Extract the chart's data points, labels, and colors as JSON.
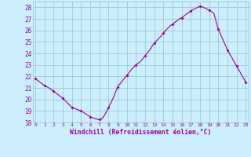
{
  "hours": [
    0,
    0.5,
    1,
    1.5,
    2,
    2.5,
    3,
    3.5,
    4,
    4.5,
    5,
    5.5,
    6,
    6.25,
    6.5,
    6.75,
    7,
    7.25,
    7.5,
    7.75,
    8,
    8.25,
    8.5,
    8.75,
    9,
    9.5,
    10,
    10.5,
    11,
    11.5,
    12,
    12.5,
    13,
    13.25,
    13.5,
    13.75,
    14,
    14.25,
    14.5,
    14.75,
    15,
    15.25,
    15.5,
    15.75,
    16,
    16.25,
    16.5,
    16.75,
    17,
    17.25,
    17.5,
    17.75,
    18,
    18.25,
    18.5,
    18.75,
    19,
    19.5,
    20,
    20.5,
    21,
    21.5,
    22,
    22.5,
    23
  ],
  "windchill": [
    21.8,
    21.5,
    21.2,
    21.0,
    20.7,
    20.4,
    20.1,
    19.7,
    19.3,
    19.15,
    19.0,
    18.75,
    18.5,
    18.4,
    18.35,
    18.28,
    18.25,
    18.3,
    18.55,
    18.9,
    19.3,
    19.7,
    20.1,
    20.6,
    21.1,
    21.6,
    22.1,
    22.6,
    23.0,
    23.3,
    23.8,
    24.3,
    24.9,
    25.1,
    25.3,
    25.5,
    25.8,
    26.0,
    26.2,
    26.4,
    26.55,
    26.7,
    26.85,
    27.0,
    27.1,
    27.25,
    27.4,
    27.55,
    27.7,
    27.8,
    27.9,
    28.0,
    28.1,
    28.05,
    27.95,
    27.85,
    27.75,
    27.5,
    26.1,
    25.2,
    24.3,
    23.6,
    22.9,
    22.2,
    21.5
  ],
  "marker_hours": [
    0,
    1,
    2,
    3,
    4,
    5,
    6,
    7,
    8,
    9,
    10,
    11,
    12,
    13,
    14,
    15,
    16,
    17,
    18,
    19,
    20,
    21,
    22,
    23
  ],
  "marker_values": [
    21.8,
    21.2,
    20.7,
    20.1,
    19.3,
    19.0,
    18.5,
    18.25,
    19.3,
    21.1,
    22.1,
    23.0,
    23.8,
    24.9,
    25.8,
    26.55,
    27.1,
    27.7,
    28.1,
    27.75,
    26.1,
    24.3,
    22.9,
    21.5
  ],
  "line_color": "#990099",
  "marker_color": "#990099",
  "bg_color": "#cceeff",
  "grid_color": "#99cccc",
  "xlabel": "Windchill (Refroidissement éolien,°C)",
  "xlabel_color": "#990099",
  "tick_color": "#990099",
  "ylim": [
    18,
    28.5
  ],
  "xlim": [
    -0.3,
    23.3
  ],
  "yticks": [
    18,
    19,
    20,
    21,
    22,
    23,
    24,
    25,
    26,
    27,
    28
  ],
  "xticks": [
    0,
    1,
    2,
    3,
    4,
    5,
    6,
    7,
    8,
    9,
    10,
    11,
    12,
    13,
    14,
    15,
    16,
    17,
    18,
    19,
    20,
    21,
    22,
    23
  ]
}
